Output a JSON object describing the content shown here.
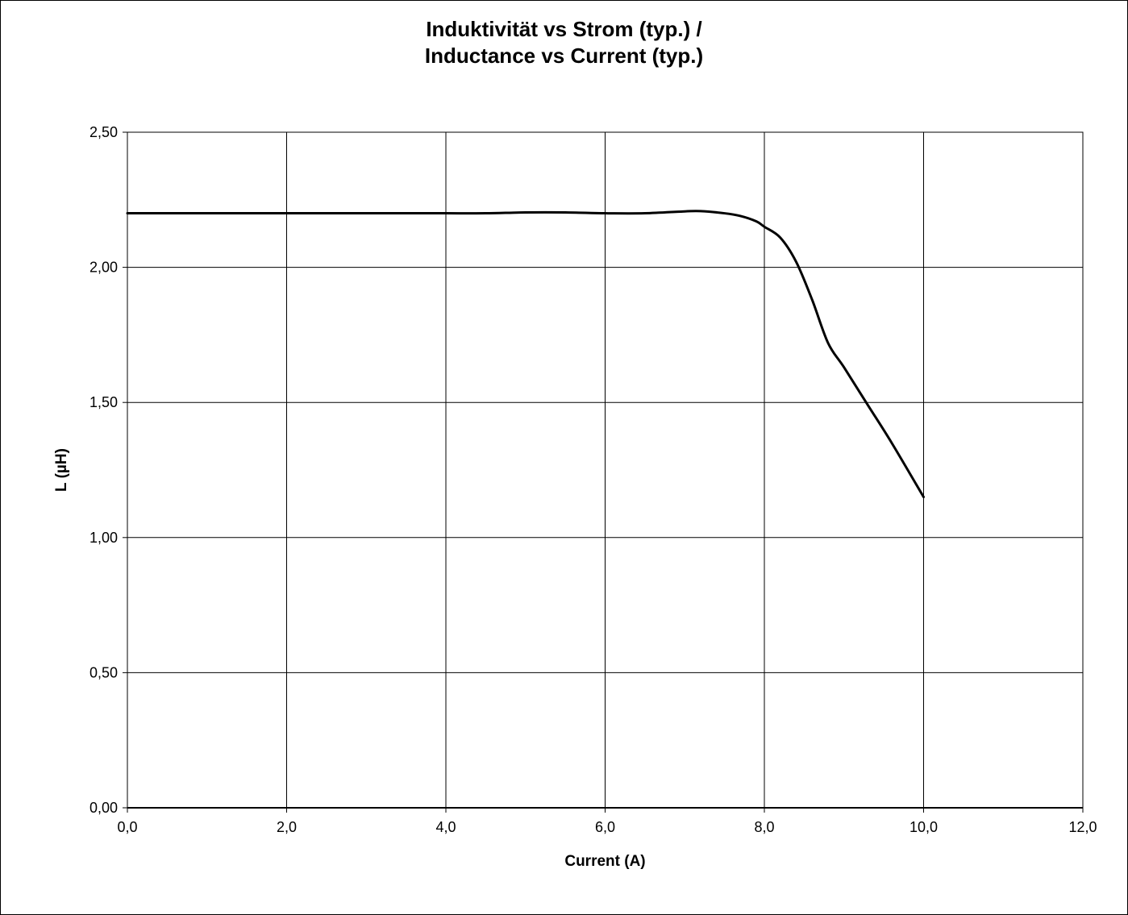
{
  "chart_data": {
    "type": "line",
    "title_line1": "Induktivität vs Strom (typ.) /",
    "title_line2": "Inductance vs Current (typ.)",
    "xlabel": "Current (A)",
    "ylabel": "L (µH)",
    "xlim": [
      0,
      12
    ],
    "ylim": [
      0,
      2.5
    ],
    "x_ticks": [
      "0,0",
      "2,0",
      "4,0",
      "6,0",
      "8,0",
      "10,0",
      "12,0"
    ],
    "y_ticks": [
      "0,00",
      "0,50",
      "1,00",
      "1,50",
      "2,00",
      "2,50"
    ],
    "grid": true,
    "legend": "none",
    "line_color": "#000000",
    "series": [
      {
        "x": [
          0,
          0.5,
          1,
          1.5,
          2,
          2.5,
          3,
          3.5,
          4,
          4.5,
          5,
          5.5,
          6,
          6.5,
          7,
          7.2,
          7.5,
          7.7,
          7.9,
          8.0,
          8.2,
          8.4,
          8.6,
          8.8,
          9.0,
          9.3,
          9.6,
          10.0
        ],
        "y": [
          2.2,
          2.2,
          2.2,
          2.2,
          2.2,
          2.2,
          2.2,
          2.2,
          2.2,
          2.2,
          2.203,
          2.203,
          2.2,
          2.2,
          2.207,
          2.208,
          2.2,
          2.19,
          2.17,
          2.15,
          2.11,
          2.02,
          1.88,
          1.72,
          1.63,
          1.49,
          1.35,
          1.15
        ]
      }
    ]
  }
}
